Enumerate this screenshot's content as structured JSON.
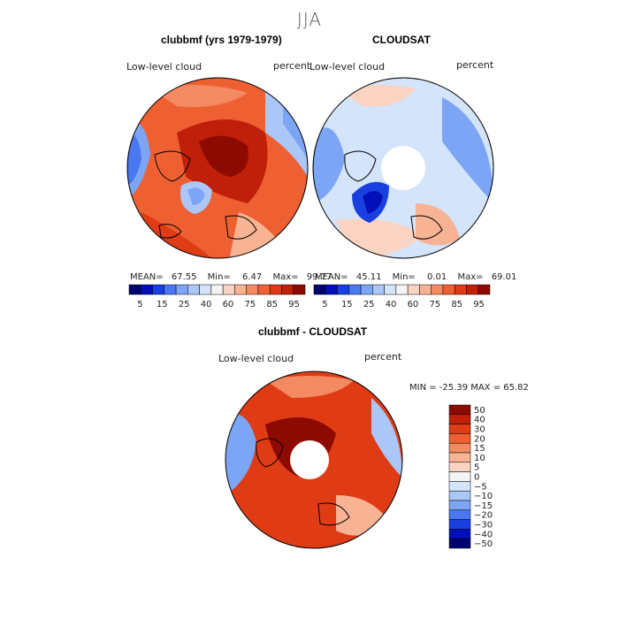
{
  "season": "JJA",
  "colors": {
    "blues": [
      "#000070",
      "#0010b8",
      "#1a3fe0",
      "#4a78f0",
      "#7ca5f5",
      "#aac7f8",
      "#d4e4fb"
    ],
    "whites": [
      "#f4f4f4"
    ],
    "reds": [
      "#fbd3c2",
      "#f8b394",
      "#f48a62",
      "#ee6032",
      "#df3c15",
      "#c0200a",
      "#8c0a00"
    ]
  },
  "panels": [
    {
      "title": "clubbmf (yrs 1979-1979)",
      "field": "Low-level cloud",
      "units": "percent",
      "mean_label": "MEAN=",
      "mean": "67.55",
      "min_label": "Min=",
      "min": "6.47",
      "max_label": "Max=",
      "max": "99.77",
      "colorbar_ticks": [
        "5",
        "15",
        "25",
        "40",
        "60",
        "75",
        "85",
        "95"
      ]
    },
    {
      "title": "CLOUDSAT",
      "field": "Low-level cloud",
      "units": "percent",
      "mean_label": "MEAN=",
      "mean": "45.11",
      "min_label": "Min=",
      "min": "0.01",
      "max_label": "Max=",
      "max": "69.01",
      "colorbar_ticks": [
        "5",
        "15",
        "25",
        "40",
        "60",
        "75",
        "85",
        "95"
      ]
    }
  ],
  "difference": {
    "title": "clubbmf - CLOUDSAT",
    "field": "Low-level cloud",
    "units": "percent",
    "range_text": "MIN = -25.39  MAX =  65.82",
    "colorbar_ticks": [
      "50",
      "40",
      "30",
      "20",
      "15",
      "10",
      "5",
      "0",
      "−5",
      "−10",
      "−15",
      "−20",
      "−30",
      "−40",
      "−50"
    ]
  }
}
